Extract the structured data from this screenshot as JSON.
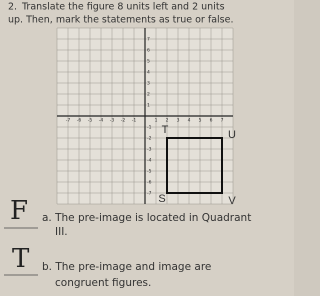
{
  "question": {
    "number": "2.",
    "text_line1": "Translate the figure 8 units left and 2 units",
    "text_line2": "up. Then, mark the statements as true or false."
  },
  "grid": {
    "x_axis_labels": [
      -7,
      -6,
      -5,
      -4,
      -3,
      -2,
      -1,
      1,
      2,
      3,
      4,
      5,
      6,
      7
    ],
    "y_axis_labels": [
      7,
      6,
      5,
      4,
      3,
      2,
      1,
      -1,
      -2,
      -3,
      -4,
      -5,
      -6,
      -7
    ],
    "vertices": [
      {
        "label": "T",
        "x": 2,
        "y": -2
      },
      {
        "label": "U",
        "x": 7,
        "y": -2
      },
      {
        "label": "V",
        "x": 7,
        "y": -7
      },
      {
        "label": "S",
        "x": 2,
        "y": -7
      }
    ]
  },
  "statements": [
    {
      "answer": "F",
      "line1": "a. The pre-image is located in Quadrant",
      "line2": "III."
    },
    {
      "answer": "T",
      "line1": "b. The pre-image and image are",
      "line2": "congruent figures."
    }
  ]
}
